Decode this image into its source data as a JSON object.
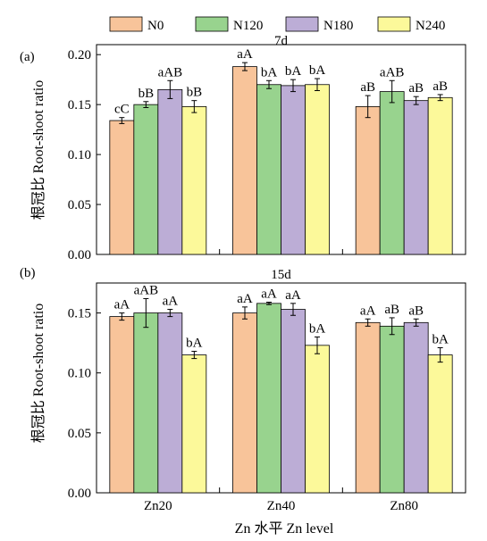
{
  "legend": [
    {
      "name": "N0",
      "color": "#F8C49A"
    },
    {
      "name": "N120",
      "color": "#98D38E"
    },
    {
      "name": "N180",
      "color": "#BCADD6"
    },
    {
      "name": "N240",
      "color": "#FCF99A"
    }
  ],
  "xlabel": "Zn 水平 Zn level",
  "chart_data": [
    {
      "type": "bar",
      "panel_label": "(a)",
      "title": "7d",
      "ylabel": "根冠比 Root-shoot ratio",
      "ylim": [
        0,
        0.21
      ],
      "yticks": [
        "0.00",
        "0.05",
        "0.10",
        "0.15",
        "0.20"
      ],
      "ytick_values": [
        0,
        0.05,
        0.1,
        0.15,
        0.2
      ],
      "categories": [
        "Zn20",
        "Zn40",
        "Zn80"
      ],
      "series": [
        {
          "name": "N0",
          "values": [
            0.134,
            0.188,
            0.148
          ],
          "errors": [
            0.003,
            0.004,
            0.011
          ],
          "labels": [
            "cC",
            "aA",
            "aB"
          ]
        },
        {
          "name": "N120",
          "values": [
            0.15,
            0.17,
            0.163
          ],
          "errors": [
            0.003,
            0.004,
            0.011
          ],
          "labels": [
            "bB",
            "bA",
            "aAB"
          ]
        },
        {
          "name": "N180",
          "values": [
            0.165,
            0.169,
            0.154
          ],
          "errors": [
            0.009,
            0.006,
            0.004
          ],
          "labels": [
            "aAB",
            "bA",
            "aB"
          ]
        },
        {
          "name": "N240",
          "values": [
            0.148,
            0.17,
            0.157
          ],
          "errors": [
            0.006,
            0.006,
            0.003
          ],
          "labels": [
            "bB",
            "bA",
            "aB"
          ]
        }
      ]
    },
    {
      "type": "bar",
      "panel_label": "(b)",
      "title": "15d",
      "ylabel": "根冠比 Root-shoot ratio",
      "ylim": [
        0,
        0.175
      ],
      "yticks": [
        "0.00",
        "0.05",
        "0.10",
        "0.15"
      ],
      "ytick_values": [
        0,
        0.05,
        0.1,
        0.15
      ],
      "categories": [
        "Zn20",
        "Zn40",
        "Zn80"
      ],
      "series": [
        {
          "name": "N0",
          "values": [
            0.147,
            0.15,
            0.142
          ],
          "errors": [
            0.003,
            0.005,
            0.003
          ],
          "labels": [
            "aA",
            "aA",
            "aA"
          ]
        },
        {
          "name": "N120",
          "values": [
            0.15,
            0.158,
            0.139
          ],
          "errors": [
            0.012,
            0.001,
            0.007
          ],
          "labels": [
            "aAB",
            "aA",
            "aB"
          ]
        },
        {
          "name": "N180",
          "values": [
            0.15,
            0.153,
            0.142
          ],
          "errors": [
            0.003,
            0.005,
            0.003
          ],
          "labels": [
            "aA",
            "aA",
            "aB"
          ]
        },
        {
          "name": "N240",
          "values": [
            0.115,
            0.123,
            0.115
          ],
          "errors": [
            0.003,
            0.007,
            0.006
          ],
          "labels": [
            "bA",
            "bA",
            "bA"
          ]
        }
      ]
    }
  ]
}
